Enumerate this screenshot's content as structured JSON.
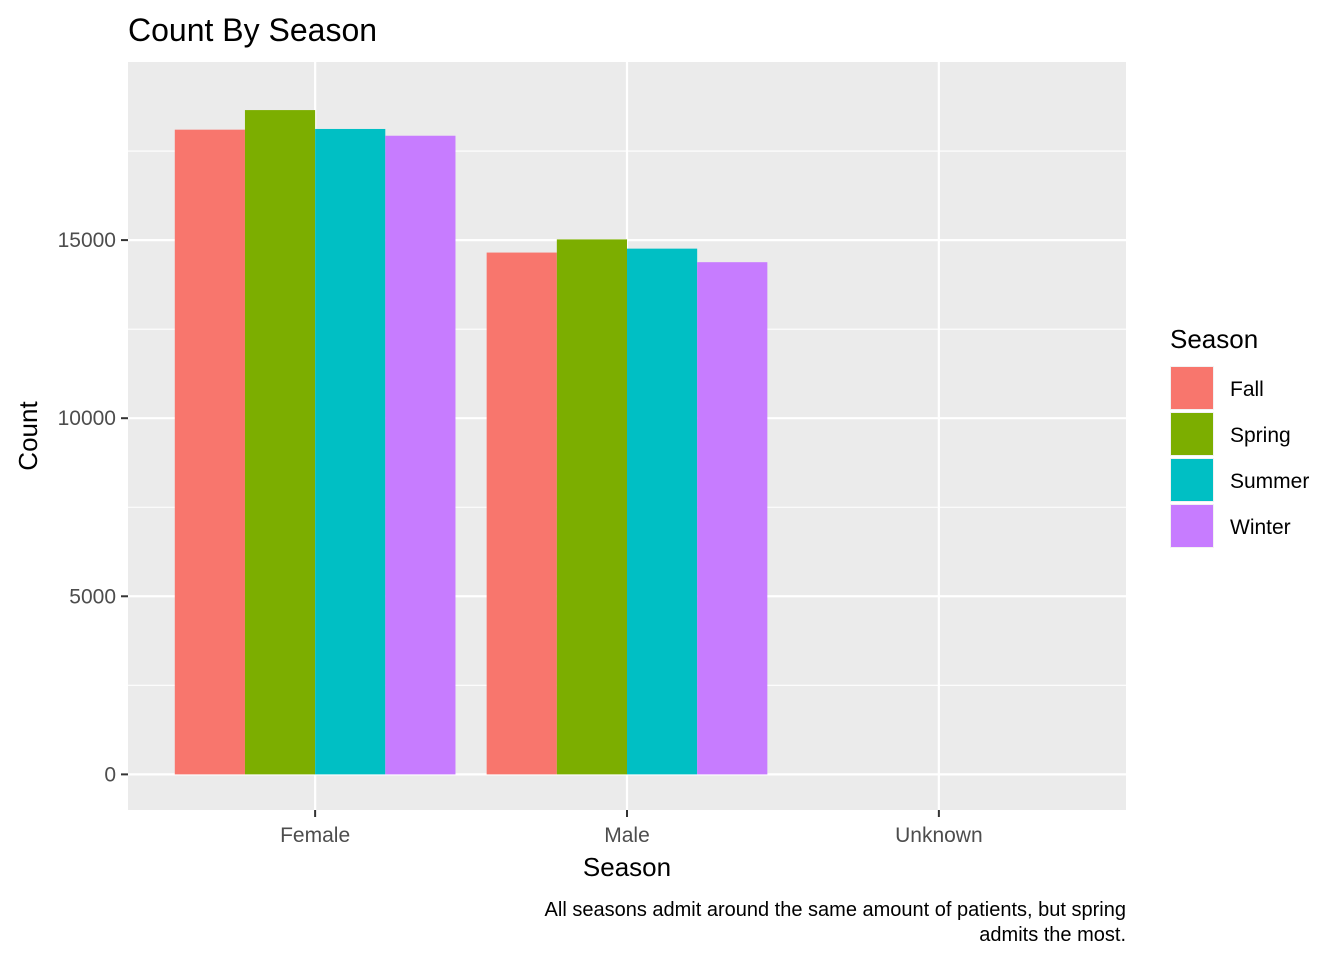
{
  "chart_data": {
    "type": "bar",
    "title": "Count By Season",
    "xlabel": "Season",
    "ylabel": "Count",
    "categories": [
      "Female",
      "Male",
      "Unknown"
    ],
    "series": [
      {
        "name": "Fall",
        "color": "#F8766D",
        "values": [
          18100,
          14650,
          0
        ]
      },
      {
        "name": "Spring",
        "color": "#7CAE00",
        "values": [
          18650,
          15020,
          0
        ]
      },
      {
        "name": "Summer",
        "color": "#00BFC4",
        "values": [
          18120,
          14760,
          0
        ]
      },
      {
        "name": "Winter",
        "color": "#C77CFF",
        "values": [
          17930,
          14380,
          0
        ]
      }
    ],
    "ylim": [
      -1000,
      20000
    ],
    "yticks": [
      0,
      5000,
      10000,
      15000
    ],
    "grid": true,
    "legend": {
      "title": "Season",
      "position": "right"
    },
    "caption": [
      "All seasons admit around the same amount of patients, but spring",
      "admits the most."
    ]
  }
}
